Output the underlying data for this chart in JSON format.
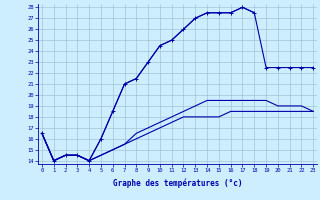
{
  "xlabel": "Graphe des températures (°c)",
  "bg_color": "#cceeff",
  "line_color": "#0000aa",
  "grid_color": "#99bbcc",
  "x_ticks": [
    0,
    1,
    2,
    3,
    4,
    5,
    6,
    7,
    8,
    9,
    10,
    11,
    12,
    13,
    14,
    15,
    16,
    17,
    18,
    19,
    20,
    21,
    22,
    23
  ],
  "y_ticks": [
    14,
    15,
    16,
    17,
    18,
    19,
    20,
    21,
    22,
    23,
    24,
    25,
    26,
    27,
    28
  ],
  "ylim": [
    13.7,
    28.3
  ],
  "xlim": [
    -0.3,
    23.3
  ],
  "curve1_x": [
    0,
    1,
    2,
    3,
    4,
    5,
    6,
    7,
    8,
    9,
    10,
    11,
    12,
    13,
    14,
    15,
    16,
    17,
    18,
    19,
    20,
    21,
    22,
    23
  ],
  "curve1_y": [
    16.5,
    14.0,
    14.5,
    14.5,
    14.0,
    16.0,
    18.5,
    21.0,
    21.5,
    23.0,
    24.5,
    25.0,
    26.0,
    27.0,
    27.5,
    27.5,
    27.5,
    28.0,
    27.5,
    22.5,
    22.5,
    22.5,
    22.5,
    22.5
  ],
  "curve2_x": [
    0,
    1,
    2,
    3,
    4,
    5,
    6,
    7,
    8,
    9,
    10,
    11,
    12,
    13,
    14,
    15,
    16,
    17,
    18,
    19,
    20,
    21,
    22,
    23
  ],
  "curve2_y": [
    16.5,
    14.0,
    14.5,
    14.5,
    14.0,
    14.5,
    15.0,
    15.5,
    16.5,
    17.0,
    17.5,
    18.0,
    18.5,
    19.0,
    19.5,
    19.5,
    19.5,
    19.5,
    19.5,
    19.5,
    19.0,
    19.0,
    19.0,
    18.5
  ],
  "curve3_x": [
    0,
    1,
    2,
    3,
    4,
    5,
    6,
    7,
    8,
    9,
    10,
    11,
    12,
    13,
    14,
    15,
    16,
    17,
    18,
    19,
    20,
    21,
    22,
    23
  ],
  "curve3_y": [
    16.5,
    14.0,
    14.5,
    14.5,
    14.0,
    14.5,
    15.0,
    15.5,
    16.0,
    16.5,
    17.0,
    17.5,
    18.0,
    18.0,
    18.0,
    18.0,
    18.5,
    18.5,
    18.5,
    18.5,
    18.5,
    18.5,
    18.5,
    18.5
  ],
  "curve4_x": [
    0,
    1,
    2,
    3,
    4,
    5,
    6,
    7,
    8,
    9,
    10,
    11,
    12,
    13,
    14,
    15,
    16,
    17,
    18
  ],
  "curve4_y": [
    16.5,
    14.0,
    14.5,
    14.5,
    14.0,
    16.0,
    18.5,
    21.0,
    21.5,
    23.0,
    24.5,
    25.0,
    26.0,
    27.0,
    27.5,
    27.5,
    27.5,
    28.0,
    27.5
  ]
}
